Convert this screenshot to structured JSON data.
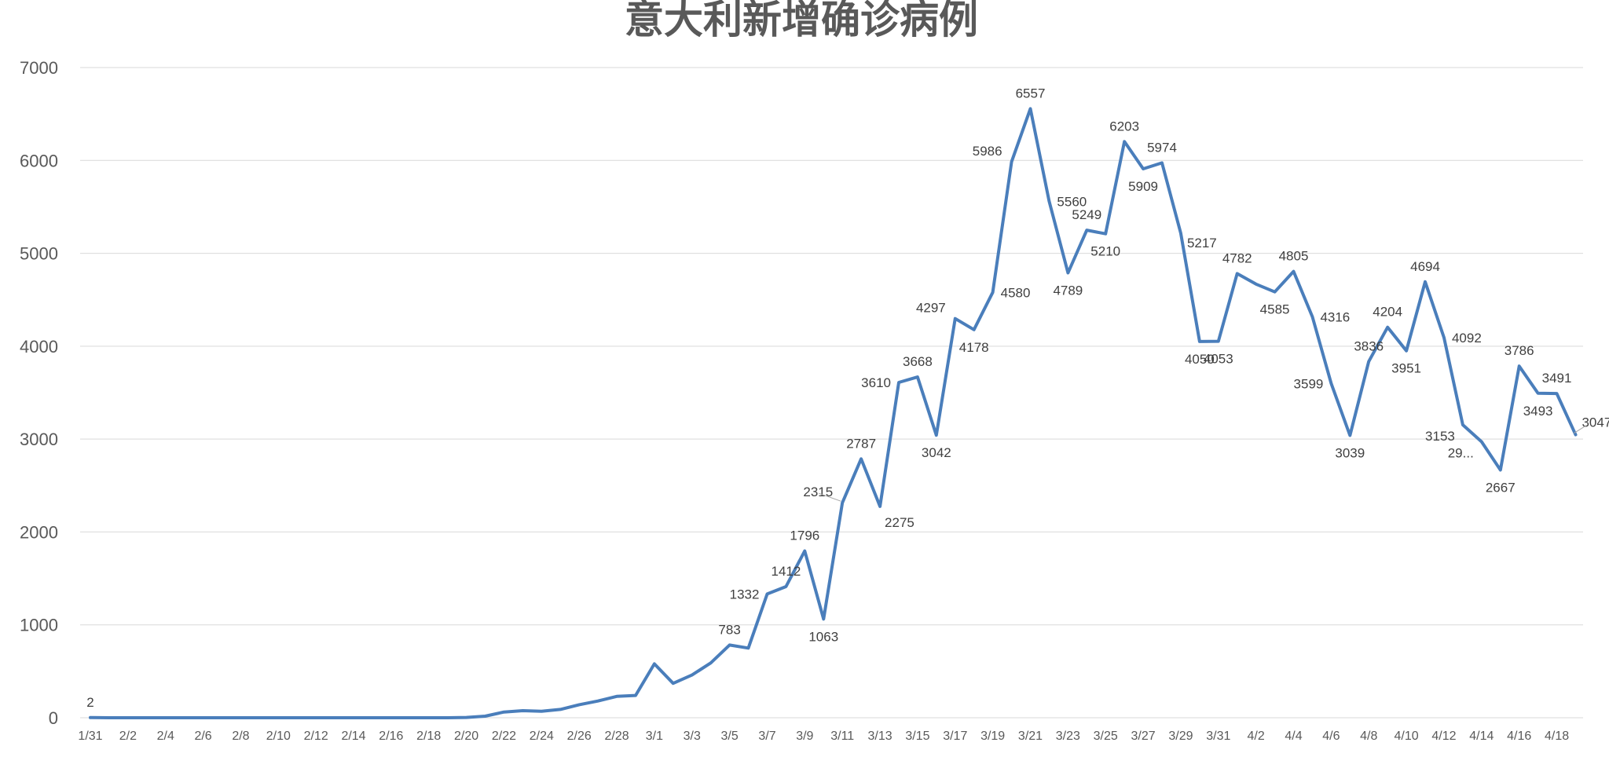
{
  "colors": {
    "series": "#4a7ebb",
    "grid": "#d9d9d9",
    "text": "#595959"
  },
  "chart_data": {
    "type": "line",
    "title": "意大利新增确诊病例",
    "xlabel": "",
    "ylabel": "",
    "ylim": [
      0,
      7000
    ],
    "yticks": [
      "0",
      "1000",
      "2000",
      "3000",
      "4000",
      "5000",
      "6000",
      "7000"
    ],
    "grid": true,
    "legend": "none",
    "x_tick_labels": [
      "1/31",
      "2/2",
      "2/4",
      "2/6",
      "2/8",
      "2/10",
      "2/12",
      "2/14",
      "2/16",
      "2/18",
      "2/20",
      "2/22",
      "2/24",
      "2/26",
      "2/28",
      "3/1",
      "3/3",
      "3/5",
      "3/7",
      "3/9",
      "3/11",
      "3/13",
      "3/15",
      "3/17",
      "3/19",
      "3/21",
      "3/23",
      "3/25",
      "3/27",
      "3/29",
      "3/31",
      "4/2",
      "4/4",
      "4/6",
      "4/8",
      "4/10",
      "4/12",
      "4/14",
      "4/16",
      "4/18"
    ],
    "x": [
      "1/31",
      "2/1",
      "2/2",
      "2/3",
      "2/4",
      "2/5",
      "2/6",
      "2/7",
      "2/8",
      "2/9",
      "2/10",
      "2/11",
      "2/12",
      "2/13",
      "2/14",
      "2/15",
      "2/16",
      "2/17",
      "2/18",
      "2/19",
      "2/20",
      "2/21",
      "2/22",
      "2/23",
      "2/24",
      "2/25",
      "2/26",
      "2/27",
      "2/28",
      "2/29",
      "3/1",
      "3/2",
      "3/3",
      "3/4",
      "3/5",
      "3/6",
      "3/7",
      "3/8",
      "3/9",
      "3/10",
      "3/11",
      "3/12",
      "3/13",
      "3/14",
      "3/15",
      "3/16",
      "3/17",
      "3/18",
      "3/19",
      "3/20",
      "3/21",
      "3/22",
      "3/23",
      "3/24",
      "3/25",
      "3/26",
      "3/27",
      "3/28",
      "3/29",
      "3/30",
      "3/31",
      "4/1",
      "4/2",
      "4/3",
      "4/4",
      "4/5",
      "4/6",
      "4/7",
      "4/8",
      "4/9",
      "4/10",
      "4/11",
      "4/12",
      "4/13",
      "4/14",
      "4/15",
      "4/16",
      "4/17",
      "4/18",
      "4/19"
    ],
    "series": [
      {
        "values": [
          2,
          0,
          0,
          0,
          0,
          0,
          0,
          0,
          0,
          0,
          0,
          0,
          0,
          0,
          0,
          0,
          0,
          0,
          0,
          0,
          3,
          17,
          62,
          76,
          70,
          90,
          140,
          180,
          230,
          240,
          580,
          370,
          460,
          590,
          783,
          750,
          1332,
          1412,
          1796,
          1063,
          2315,
          2787,
          2275,
          3610,
          3668,
          3042,
          4297,
          4178,
          4580,
          5986,
          6557,
          5560,
          4789,
          5249,
          5210,
          6203,
          5909,
          5974,
          5217,
          4050,
          4053,
          4782,
          4668,
          4585,
          4805,
          4316,
          3599,
          3039,
          3836,
          4204,
          3951,
          4694,
          4092,
          3153,
          2972,
          2667,
          3786,
          3493,
          3491,
          3047
        ]
      }
    ],
    "data_labels": [
      {
        "i": 0,
        "text": "2",
        "pos": "above"
      },
      {
        "i": 34,
        "text": "783",
        "pos": "above"
      },
      {
        "i": 36,
        "text": "1332",
        "pos": "left"
      },
      {
        "i": 37,
        "text": "1412",
        "pos": "above"
      },
      {
        "i": 38,
        "text": "1796",
        "pos": "above"
      },
      {
        "i": 39,
        "text": "1063",
        "pos": "below"
      },
      {
        "i": 40,
        "text": "2315",
        "pos": "left-up"
      },
      {
        "i": 41,
        "text": "2787",
        "pos": "above"
      },
      {
        "i": 42,
        "text": "2275",
        "pos": "below-right"
      },
      {
        "i": 43,
        "text": "3610",
        "pos": "left"
      },
      {
        "i": 44,
        "text": "3668",
        "pos": "above"
      },
      {
        "i": 45,
        "text": "3042",
        "pos": "below"
      },
      {
        "i": 46,
        "text": "4297",
        "pos": "left-up"
      },
      {
        "i": 47,
        "text": "4178",
        "pos": "below"
      },
      {
        "i": 48,
        "text": "4580",
        "pos": "right"
      },
      {
        "i": 49,
        "text": "5986",
        "pos": "left-up"
      },
      {
        "i": 50,
        "text": "6557",
        "pos": "above"
      },
      {
        "i": 51,
        "text": "5560",
        "pos": "right"
      },
      {
        "i": 52,
        "text": "4789",
        "pos": "below"
      },
      {
        "i": 53,
        "text": "5249",
        "pos": "above"
      },
      {
        "i": 54,
        "text": "5210",
        "pos": "below"
      },
      {
        "i": 55,
        "text": "6203",
        "pos": "above"
      },
      {
        "i": 56,
        "text": "5909",
        "pos": "below"
      },
      {
        "i": 57,
        "text": "5974",
        "pos": "above"
      },
      {
        "i": 58,
        "text": "5217",
        "pos": "right-down"
      },
      {
        "i": 59,
        "text": "4050",
        "pos": "below"
      },
      {
        "i": 60,
        "text": "4053",
        "pos": "below"
      },
      {
        "i": 61,
        "text": "4782",
        "pos": "above"
      },
      {
        "i": 63,
        "text": "4585",
        "pos": "below"
      },
      {
        "i": 64,
        "text": "4805",
        "pos": "above"
      },
      {
        "i": 65,
        "text": "4316",
        "pos": "right"
      },
      {
        "i": 66,
        "text": "3599",
        "pos": "left"
      },
      {
        "i": 67,
        "text": "3039",
        "pos": "below"
      },
      {
        "i": 68,
        "text": "3836",
        "pos": "above"
      },
      {
        "i": 69,
        "text": "4204",
        "pos": "above"
      },
      {
        "i": 70,
        "text": "3951",
        "pos": "below"
      },
      {
        "i": 71,
        "text": "4694",
        "pos": "above"
      },
      {
        "i": 72,
        "text": "4092",
        "pos": "right"
      },
      {
        "i": 73,
        "text": "3153",
        "pos": "left-down"
      },
      {
        "i": 74,
        "text": "29...",
        "pos": "left-down"
      },
      {
        "i": 75,
        "text": "2667",
        "pos": "below"
      },
      {
        "i": 76,
        "text": "3786",
        "pos": "above"
      },
      {
        "i": 77,
        "text": "3493",
        "pos": "below"
      },
      {
        "i": 78,
        "text": "3491",
        "pos": "above"
      },
      {
        "i": 79,
        "text": "3047",
        "pos": "right-up"
      }
    ]
  }
}
